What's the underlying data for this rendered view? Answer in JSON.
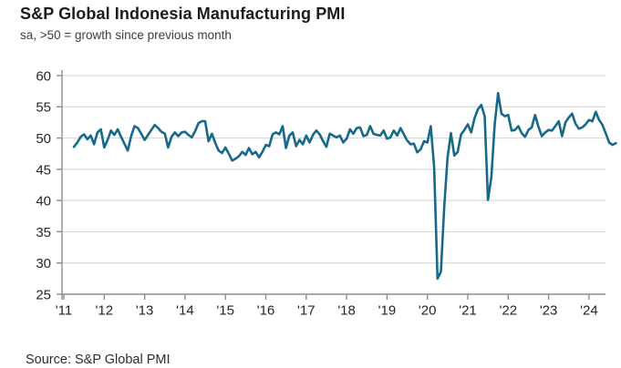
{
  "header": {
    "title": "S&P Global Indonesia Manufacturing PMI",
    "subtitle": "sa, >50 = growth since previous month"
  },
  "footer": {
    "source": "Source: S&P Global PMI"
  },
  "colors": {
    "line": "#17698a",
    "axis": "#8c8c8c",
    "grid": "#dadada",
    "text": "#262626"
  },
  "chart_data": {
    "type": "line",
    "title": "S&P Global Indonesia Manufacturing PMI",
    "subtitle": "sa, >50 = growth since previous month",
    "frequency": "monthly",
    "x_start": "2011-04",
    "x_end": "2024-09",
    "ylim": [
      25,
      60
    ],
    "yticks": [
      25,
      30,
      35,
      40,
      45,
      50,
      55,
      60
    ],
    "xtick_labels": [
      "'11",
      "'12",
      "'13",
      "'14",
      "'15",
      "'16",
      "'17",
      "'18",
      "'19",
      "'20",
      "'21",
      "'22",
      "'23",
      "'24"
    ],
    "grid": "horizontal",
    "legend": "none",
    "reference_level": 50,
    "series": [
      {
        "name": "Indonesia Manufacturing PMI (sa)",
        "values": [
          48.6,
          49.3,
          50.2,
          50.6,
          49.8,
          50.4,
          49.0,
          50.9,
          51.4,
          48.5,
          49.7,
          51.2,
          50.5,
          51.4,
          50.2,
          49.1,
          48.0,
          50.3,
          51.9,
          51.6,
          50.7,
          49.7,
          50.5,
          51.3,
          52.1,
          51.6,
          51.0,
          50.7,
          48.5,
          50.2,
          50.9,
          50.3,
          50.9,
          51.0,
          50.5,
          50.1,
          51.1,
          52.4,
          52.7,
          52.7,
          49.5,
          50.7,
          49.2,
          48.0,
          47.6,
          48.5,
          47.5,
          46.4,
          46.7,
          47.1,
          47.8,
          47.3,
          48.4,
          47.4,
          47.8,
          46.9,
          47.8,
          48.9,
          48.7,
          50.6,
          50.9,
          50.6,
          51.9,
          48.4,
          50.4,
          50.9,
          48.7,
          49.7,
          49.0,
          50.4,
          49.3,
          50.5,
          51.2,
          50.6,
          49.5,
          48.6,
          50.7,
          50.4,
          50.1,
          50.4,
          49.3,
          49.9,
          51.4,
          50.7,
          51.6,
          51.7,
          50.3,
          50.5,
          51.9,
          50.7,
          50.5,
          50.4,
          51.2,
          49.9,
          50.1,
          51.2,
          50.4,
          51.6,
          50.6,
          49.6,
          49.0,
          49.1,
          47.7,
          48.2,
          49.5,
          49.3,
          51.9,
          45.3,
          27.5,
          28.6,
          39.1,
          46.9,
          50.8,
          47.2,
          47.8,
          50.6,
          51.3,
          52.2,
          50.9,
          53.2,
          54.6,
          55.3,
          53.5,
          40.1,
          43.7,
          52.2,
          57.2,
          53.9,
          53.5,
          53.7,
          51.2,
          51.3,
          51.9,
          50.8,
          50.2,
          51.3,
          51.7,
          53.7,
          51.8,
          50.3,
          50.9,
          51.3,
          51.2,
          51.9,
          52.7,
          50.3,
          52.5,
          53.3,
          53.9,
          52.3,
          51.5,
          51.7,
          52.2,
          52.9,
          52.7,
          54.2,
          52.9,
          52.1,
          50.7,
          49.3,
          48.9,
          49.2
        ]
      }
    ]
  }
}
